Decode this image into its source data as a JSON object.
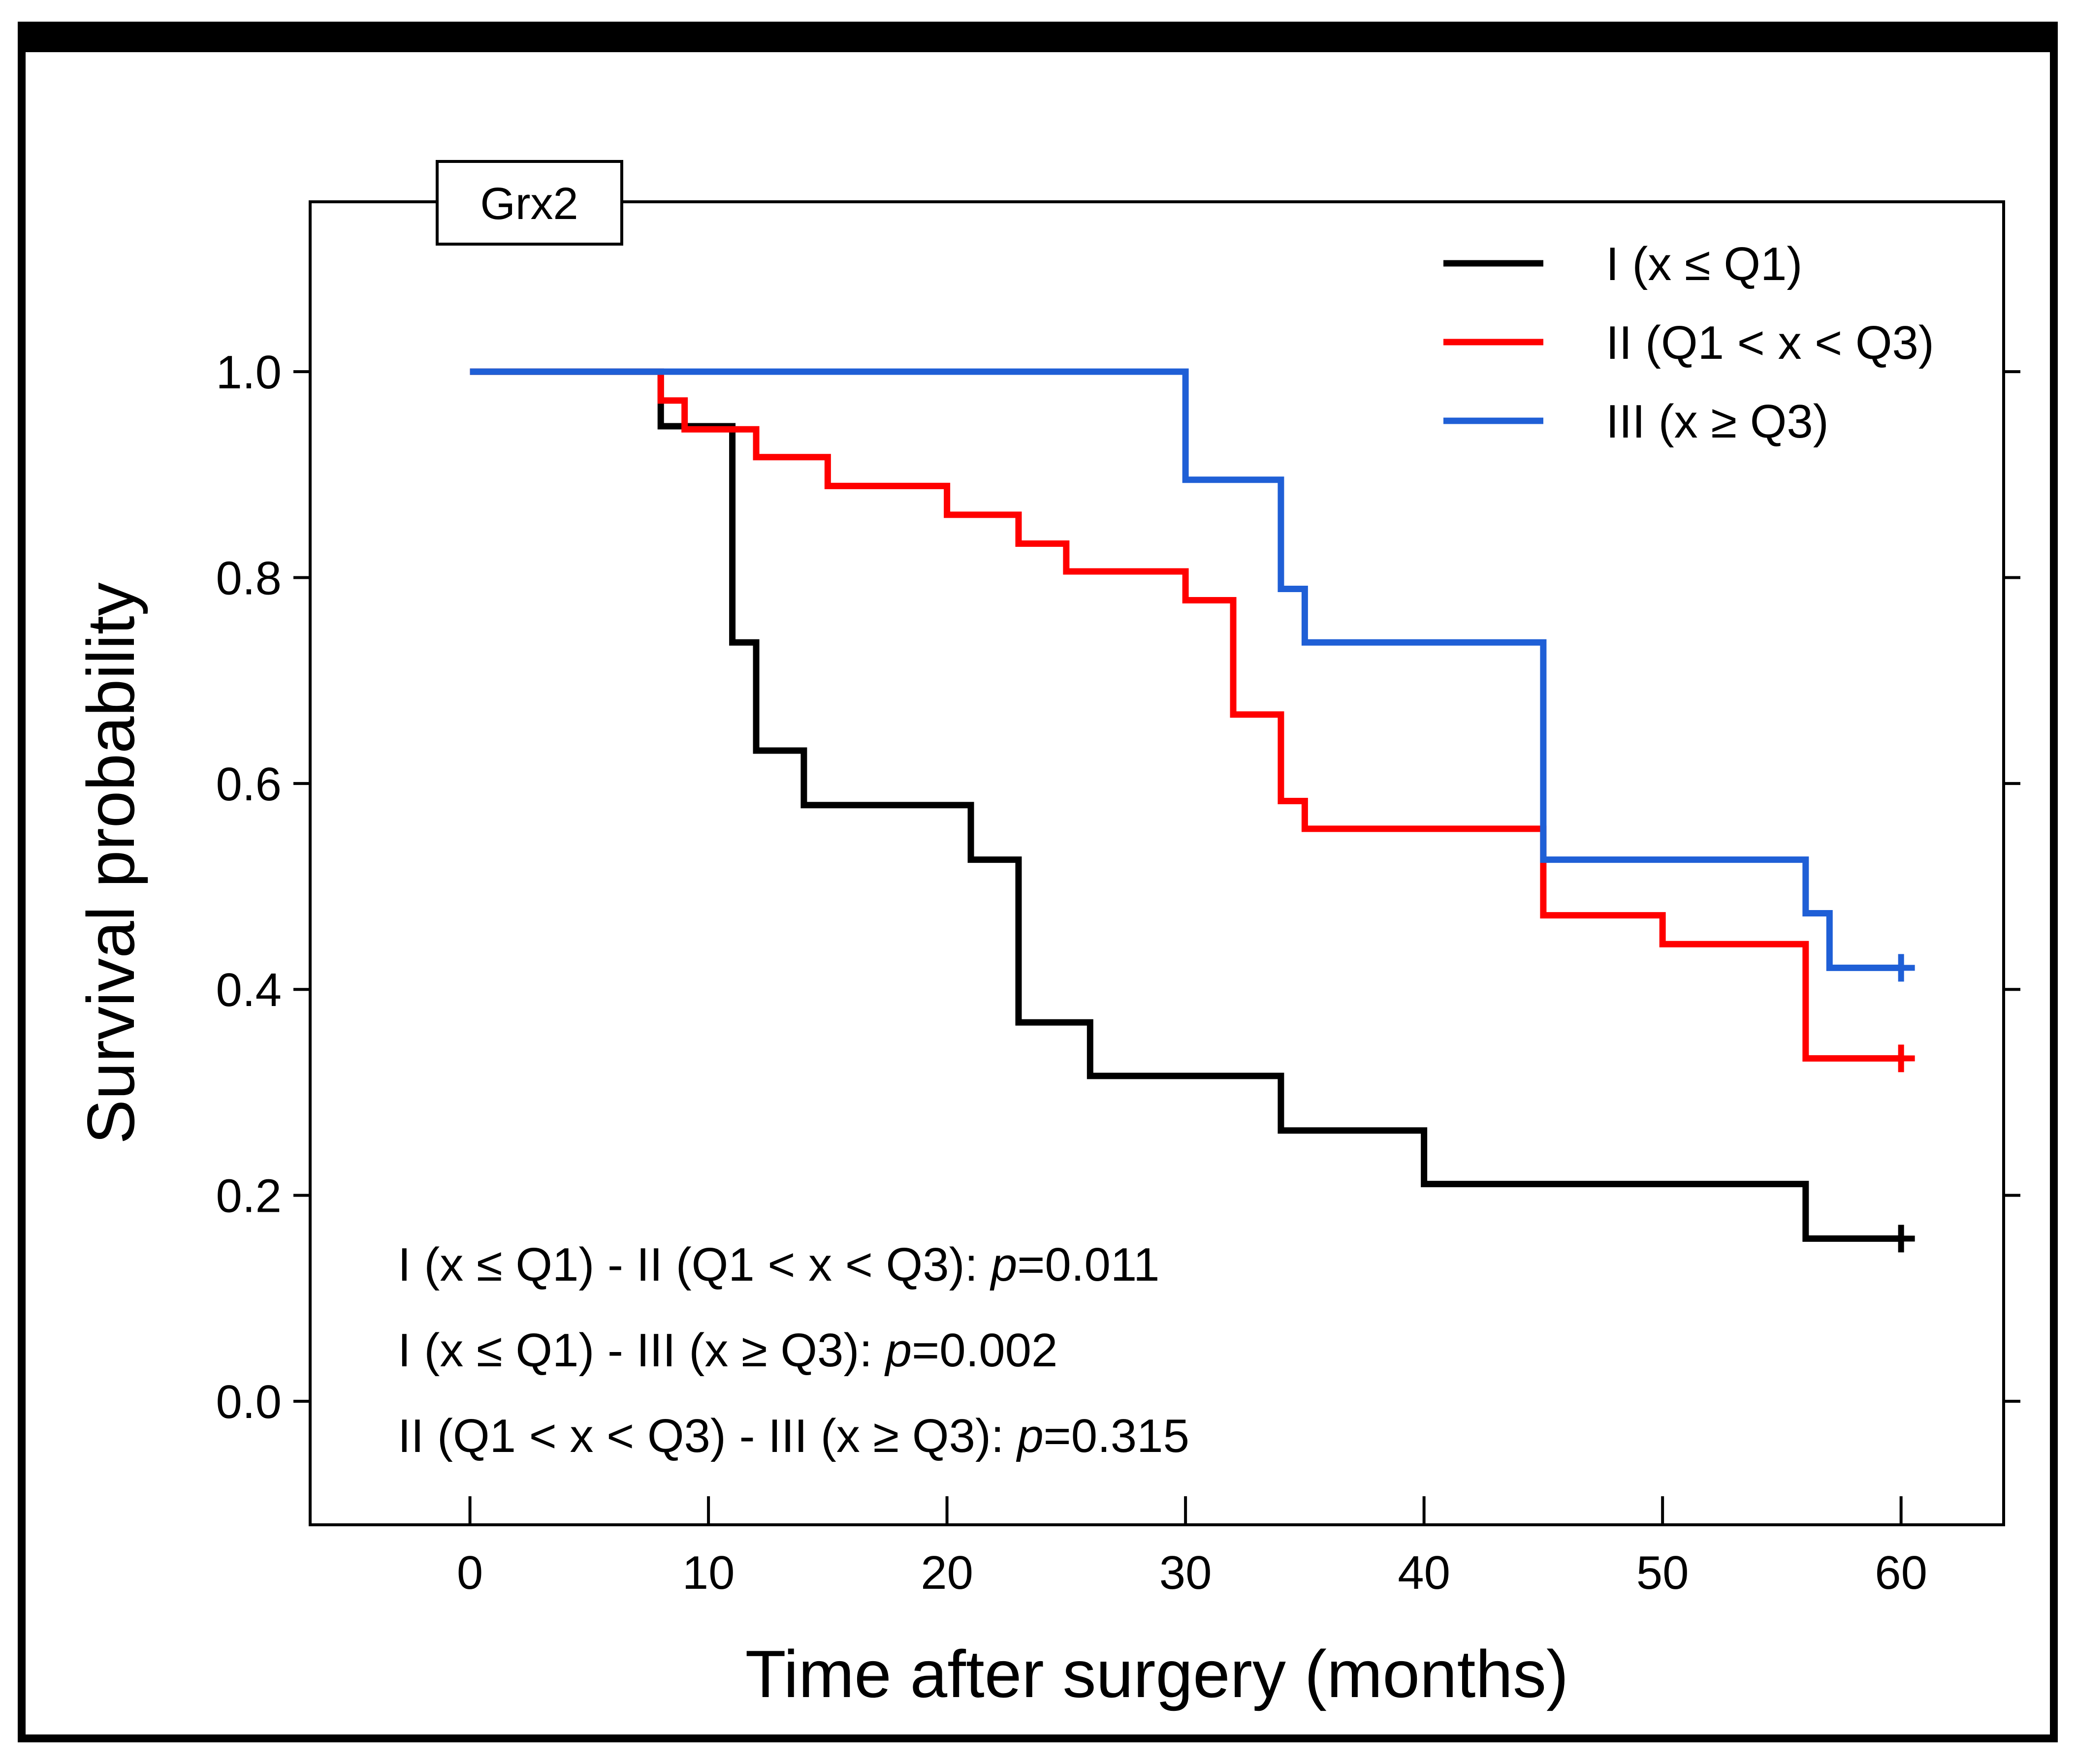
{
  "chart_data": {
    "type": "line",
    "step": "post",
    "panel_label": "Grx2",
    "xlabel": "Time after surgery (months)",
    "ylabel": "Survival probability",
    "xlim": [
      -6.7,
      64.3
    ],
    "ylim": [
      -0.12,
      1.165
    ],
    "x_ticks": [
      0,
      10,
      20,
      30,
      40,
      50,
      60
    ],
    "y_ticks": [
      0.0,
      0.2,
      0.4,
      0.6,
      0.8,
      1.0
    ],
    "x_tick_labels": [
      "0",
      "10",
      "20",
      "30",
      "40",
      "50",
      "60"
    ],
    "y_tick_labels": [
      "0.0",
      "0.2",
      "0.4",
      "0.6",
      "0.8",
      "1.0"
    ],
    "grid": false,
    "legend_position": "top-right",
    "series": [
      {
        "name": "I (x ≤ Q1)",
        "color": "#000000",
        "x": [
          0,
          8.0,
          11.0,
          12.0,
          14.0,
          21.0,
          23.0,
          26.0,
          34.0,
          40.0,
          56.0,
          60.0
        ],
        "y": [
          1.0,
          0.947,
          0.737,
          0.632,
          0.579,
          0.526,
          0.368,
          0.316,
          0.263,
          0.211,
          0.158,
          0.158
        ]
      },
      {
        "name": "II (Q1 < x < Q3)",
        "color": "#ff0000",
        "x": [
          0,
          8.0,
          9.0,
          12.0,
          15.0,
          20.0,
          23.0,
          25.0,
          30.0,
          32.0,
          34.0,
          35.0,
          45.0,
          50.0,
          56.0,
          60.0
        ],
        "y": [
          1.0,
          0.972,
          0.944,
          0.917,
          0.889,
          0.861,
          0.833,
          0.806,
          0.778,
          0.667,
          0.583,
          0.556,
          0.472,
          0.444,
          0.333,
          0.333
        ]
      },
      {
        "name": "III (x ≥ Q3)",
        "color": "#1f5fd6",
        "x": [
          0,
          30.0,
          34.0,
          35.0,
          45.0,
          56.0,
          57.0,
          60.0
        ],
        "y": [
          1.0,
          0.895,
          0.789,
          0.737,
          0.526,
          0.474,
          0.421,
          0.421
        ]
      }
    ],
    "annotations": [
      {
        "text": "I (x ≤ Q1) - II (Q1 < x < Q3): ",
        "p_label": "p",
        "p_value": "=0.011"
      },
      {
        "text": "I (x ≤ Q1) - III (x ≥ Q3): ",
        "p_label": "p",
        "p_value": "=0.002"
      },
      {
        "text": "II (Q1 < x < Q3) - III (x ≥ Q3): ",
        "p_label": "p",
        "p_value": "=0.315"
      }
    ]
  }
}
